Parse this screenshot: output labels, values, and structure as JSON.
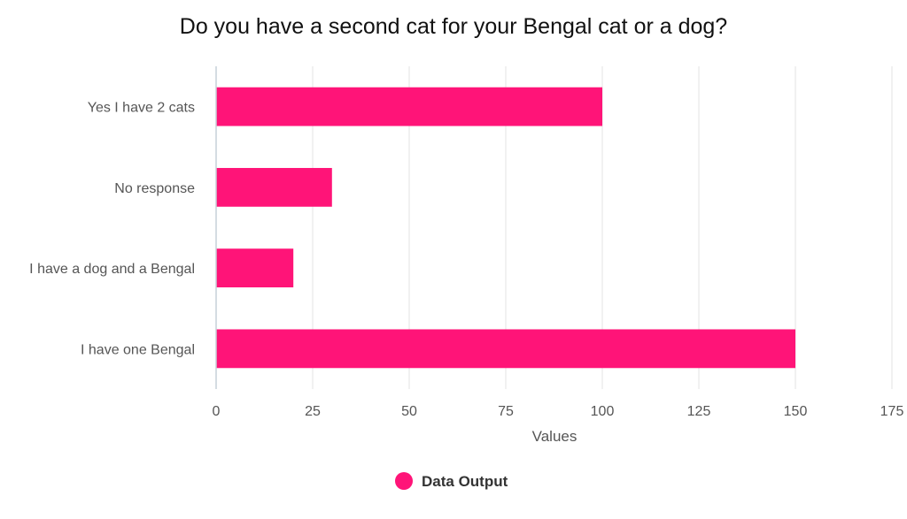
{
  "colors": {
    "bar": "#ff1478",
    "grid": "#e3e3e3",
    "axis": "#c6d1d9"
  },
  "chart_data": {
    "type": "bar",
    "orientation": "horizontal",
    "title": "Do you have a second cat for your Bengal cat or a dog?",
    "xlabel": "Values",
    "ylabel": "",
    "categories": [
      "Yes I have 2 cats",
      "No response",
      "I have a dog and a Bengal",
      "I have one Bengal"
    ],
    "series": [
      {
        "name": "Data Output",
        "values": [
          100,
          30,
          20,
          150
        ]
      }
    ],
    "xlim": [
      0,
      175
    ],
    "xticks": [
      "0",
      "25",
      "50",
      "75",
      "100",
      "125",
      "150",
      "175"
    ],
    "grid": true,
    "legend": "bottom-center"
  }
}
